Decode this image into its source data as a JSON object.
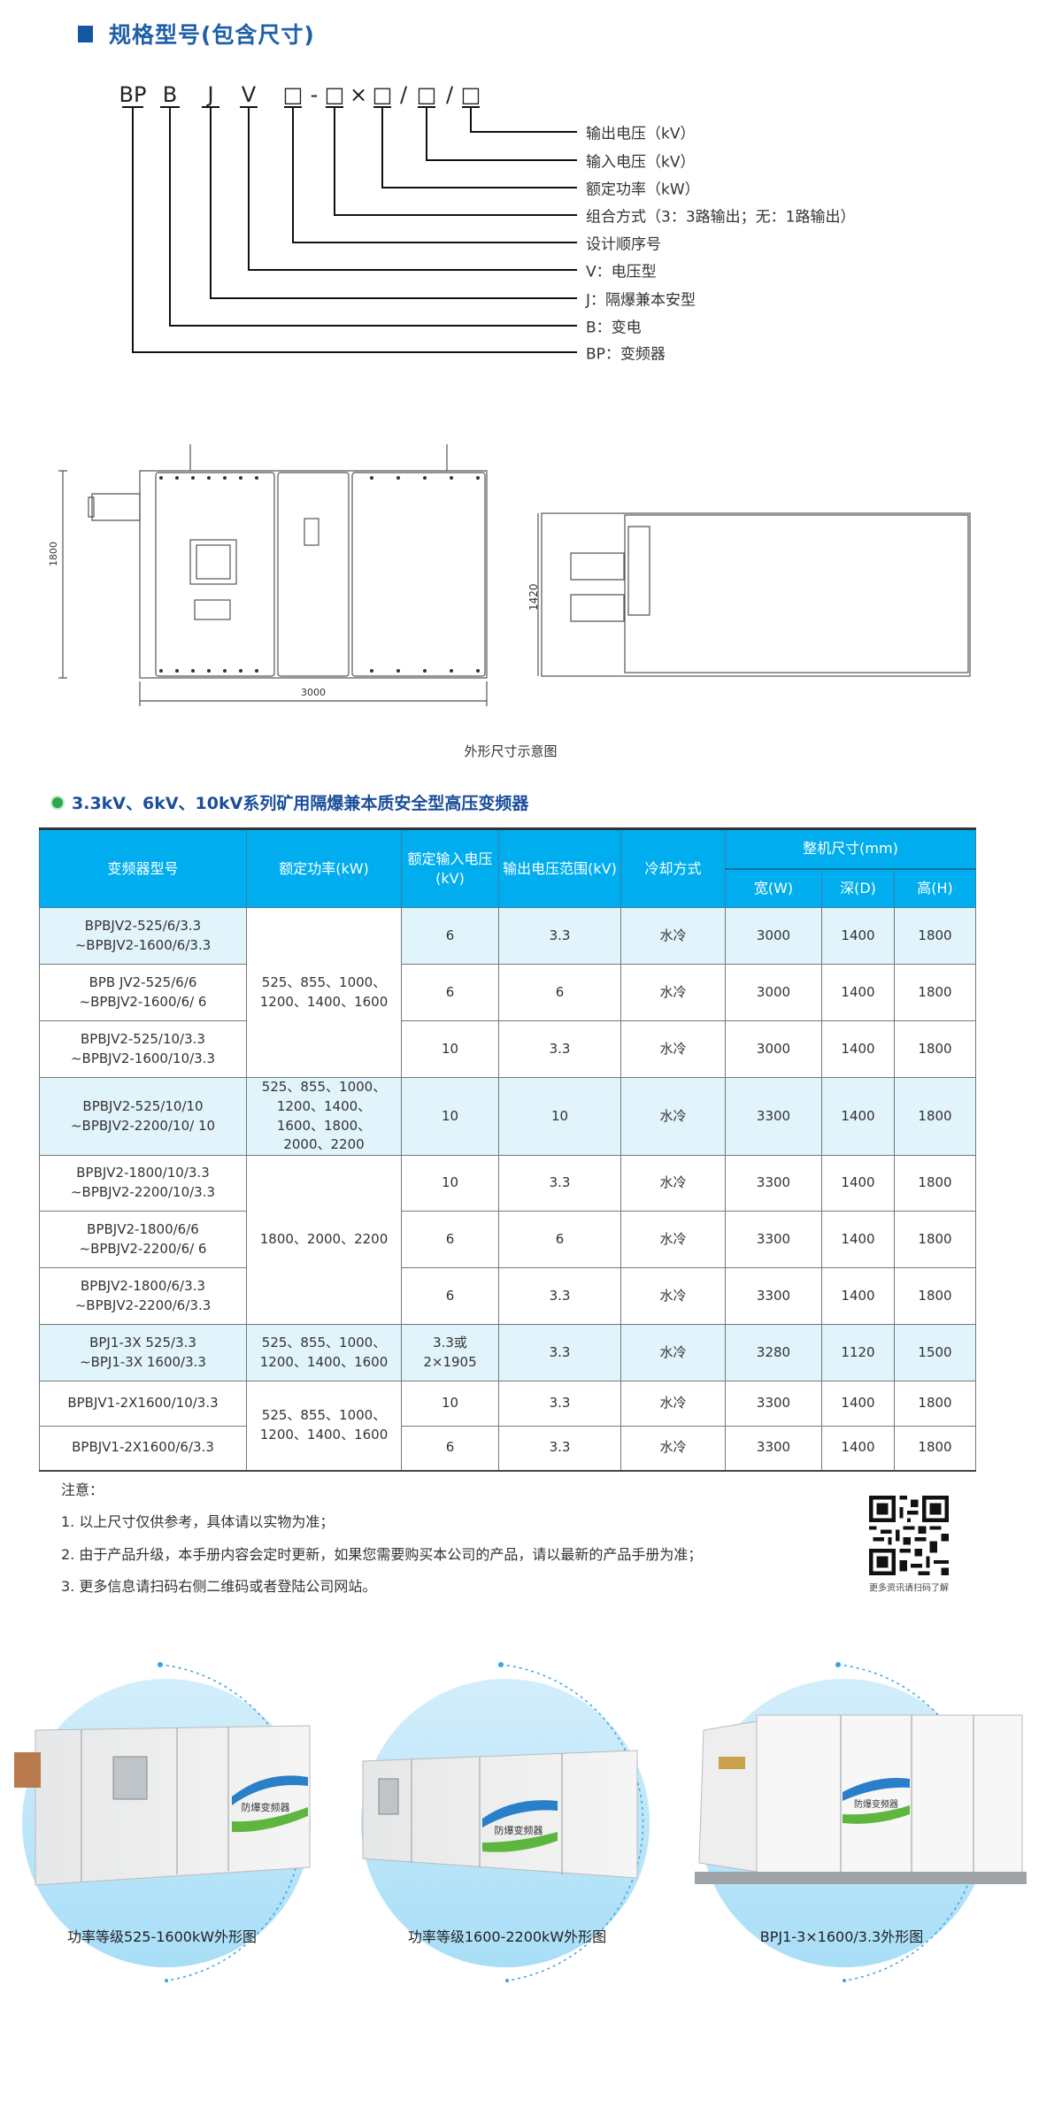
{
  "section1": {
    "title": "规格型号(包含尺寸)",
    "code_parts": [
      "BP",
      "B",
      "J",
      "V",
      "□",
      "-",
      "□",
      "×",
      "□",
      "/",
      "□",
      "/",
      "□"
    ],
    "labels": [
      "输出电压（kV）",
      "输入电压（kV）",
      "额定功率（kW）",
      "组合方式（3：3路输出；无：1路输出）",
      "设计顺序号",
      "V：电压型",
      "J：隔爆兼本安型",
      "B：变电",
      "BP：变频器"
    ]
  },
  "drawing": {
    "height_dim": "1800",
    "width_dim": "3000",
    "depth_dim": "1420",
    "caption": "外形尺寸示意图"
  },
  "section2": {
    "title": "3.3kV、6kV、10kV系列矿用隔爆兼本质安全型高压变频器",
    "accent_color": "#00aeef",
    "highlight_row_color": "#e1f3fb",
    "headers": {
      "model": "变频器型号",
      "power": "额定功率(kW)",
      "input": "额定输入电压(kV)",
      "output": "输出电压范围(kV)",
      "cooling": "冷却方式",
      "size": "整机尺寸(mm)",
      "w": "宽(W)",
      "d": "深(D)",
      "h": "高(H)"
    },
    "power_groups": [
      "525、855、1000、1200、1400、1600",
      "525、855、1000、1200、1400、1600、1800、2000、2200",
      "1800、2000、2200",
      "525、855、1000、1200、1400、1600",
      "525、855、1000、1200、1400、1600"
    ],
    "rows": [
      {
        "model": [
          "BPBJV2-525/6/3.3",
          "~BPBJV2-1600/6/3.3"
        ],
        "input": "6",
        "output": "3.3",
        "cooling": "水冷",
        "w": "3000",
        "d": "1400",
        "h": "1800"
      },
      {
        "model": [
          "BPB JV2-525/6/6",
          "~BPBJV2-1600/6/ 6"
        ],
        "input": "6",
        "output": "6",
        "cooling": "水冷",
        "w": "3000",
        "d": "1400",
        "h": "1800"
      },
      {
        "model": [
          "BPBJV2-525/10/3.3",
          "~BPBJV2-1600/10/3.3"
        ],
        "input": "10",
        "output": "3.3",
        "cooling": "水冷",
        "w": "3000",
        "d": "1400",
        "h": "1800"
      },
      {
        "model": [
          "BPBJV2-525/10/10",
          "~BPBJV2-2200/10/ 10"
        ],
        "input": "10",
        "output": "10",
        "cooling": "水冷",
        "w": "3300",
        "d": "1400",
        "h": "1800"
      },
      {
        "model": [
          "BPBJV2-1800/10/3.3",
          "~BPBJV2-2200/10/3.3"
        ],
        "input": "10",
        "output": "3.3",
        "cooling": "水冷",
        "w": "3300",
        "d": "1400",
        "h": "1800"
      },
      {
        "model": [
          "BPBJV2-1800/6/6",
          "~BPBJV2-2200/6/ 6"
        ],
        "input": "6",
        "output": "6",
        "cooling": "水冷",
        "w": "3300",
        "d": "1400",
        "h": "1800"
      },
      {
        "model": [
          "BPBJV2-1800/6/3.3",
          "~BPBJV2-2200/6/3.3"
        ],
        "input": "6",
        "output": "3.3",
        "cooling": "水冷",
        "w": "3300",
        "d": "1400",
        "h": "1800"
      },
      {
        "model": [
          "BPJ1-3X 525/3.3",
          "~BPJ1-3X 1600/3.3"
        ],
        "input": "3.3或 2×1905",
        "output": "3.3",
        "cooling": "水冷",
        "w": "3280",
        "d": "1120",
        "h": "1500"
      },
      {
        "model": [
          "BPBJV1-2X1600/10/3.3",
          ""
        ],
        "input": "10",
        "output": "3.3",
        "cooling": "水冷",
        "w": "3300",
        "d": "1400",
        "h": "1800"
      },
      {
        "model": [
          "BPBJV1-2X1600/6/3.3",
          ""
        ],
        "input": "6",
        "output": "3.3",
        "cooling": "水冷",
        "w": "3300",
        "d": "1400",
        "h": "1800"
      }
    ]
  },
  "notes": {
    "title": "注意：",
    "items": [
      "1. 以上尺寸仅供参考，具体请以实物为准；",
      "2. 由于产品升级，本手册内容会定时更新，如果您需要购买本公司的产品，请以最新的产品手册为准；",
      "3. 更多信息请扫码右侧二维码或者登陆公司网站。"
    ],
    "qr_caption": "更多资讯请扫码了解"
  },
  "gallery": {
    "items": [
      {
        "caption": "功率等级525-1600kW外形图"
      },
      {
        "caption": "功率等级1600-2200kW外形图"
      },
      {
        "caption": "BPJ1-3×1600/3.3外形图"
      }
    ],
    "panel_label": "防爆变频器",
    "circle_color": "#aadff7",
    "swoosh_colors": [
      "#2a7fc9",
      "#5fb63e"
    ]
  }
}
